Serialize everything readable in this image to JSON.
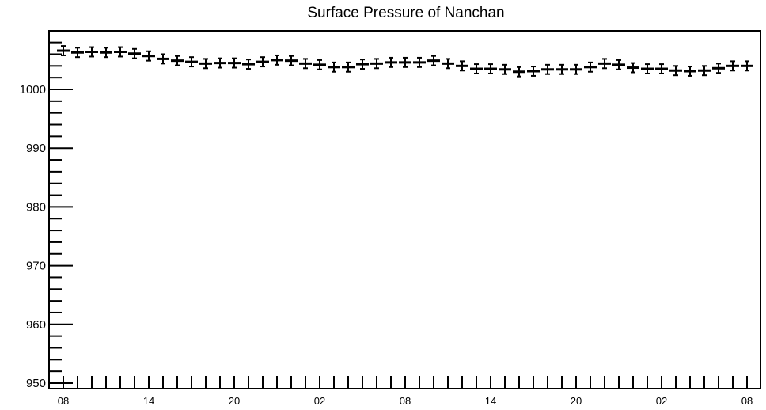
{
  "chart_data": {
    "type": "scatter",
    "title": "Surface Pressure of Nanchan",
    "xlabel": "",
    "ylabel": "",
    "ylim": [
      950,
      1010
    ],
    "y_ticks": [
      950,
      960,
      970,
      980,
      990,
      1000
    ],
    "x_tick_labels": [
      "08",
      "14",
      "20",
      "02",
      "08",
      "14",
      "20",
      "02",
      "08"
    ],
    "x_hours": [
      0,
      1,
      2,
      3,
      4,
      5,
      6,
      7,
      8,
      9,
      10,
      11,
      12,
      13,
      14,
      15,
      16,
      17,
      18,
      19,
      20,
      21,
      22,
      23,
      24,
      25,
      26,
      27,
      28,
      29,
      30,
      31,
      32,
      33,
      34,
      35,
      36,
      37,
      38,
      39,
      40,
      41,
      42,
      43,
      44,
      45,
      46,
      47,
      48
    ],
    "series": [
      {
        "values": [
          1006.6,
          1006.3,
          1006.4,
          1006.3,
          1006.4,
          1006.1,
          1005.7,
          1005.2,
          1004.9,
          1004.7,
          1004.4,
          1004.5,
          1004.5,
          1004.3,
          1004.7,
          1005.0,
          1004.9,
          1004.4,
          1004.2,
          1003.8,
          1003.8,
          1004.3,
          1004.4,
          1004.6,
          1004.6,
          1004.6,
          1004.9,
          1004.4,
          1004.0,
          1003.5,
          1003.5,
          1003.4,
          1003.0,
          1003.1,
          1003.4,
          1003.4,
          1003.4,
          1003.8,
          1004.4,
          1004.2,
          1003.7,
          1003.5,
          1003.5,
          1003.2,
          1003.1,
          1003.2,
          1003.6,
          1004.0,
          1004.0
        ],
        "error": 0.8
      }
    ],
    "grid": false,
    "legend": "none"
  }
}
